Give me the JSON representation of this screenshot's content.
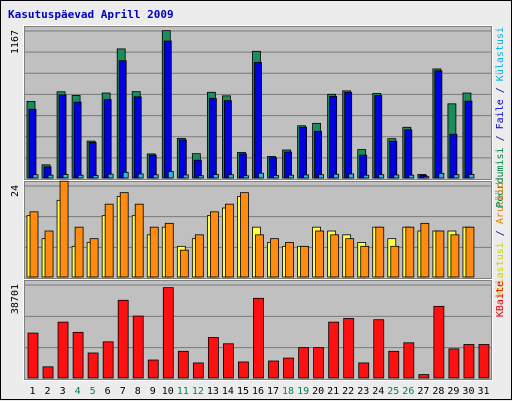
{
  "chart_data": {
    "type": "bar",
    "title": "Kasutuspäevad Aprill 2009",
    "categories": [
      "1",
      "2",
      "3",
      "4",
      "5",
      "6",
      "7",
      "8",
      "9",
      "10",
      "11",
      "12",
      "13",
      "14",
      "15",
      "16",
      "17",
      "18",
      "19",
      "20",
      "21",
      "22",
      "23",
      "24",
      "25",
      "26",
      "27",
      "28",
      "29",
      "30",
      "31"
    ],
    "weekend_days": [
      "4",
      "5",
      "11",
      "12",
      "18",
      "19",
      "25",
      "26"
    ],
    "panels": [
      {
        "id": "traffic",
        "ymax_label": "1167",
        "ylim": [
          0,
          1167
        ],
        "side_label_parts": [
          {
            "text": "Pöördumisi",
            "color": "#008040"
          },
          {
            "text": " / ",
            "color": "#000080"
          },
          {
            "text": "Faile",
            "color": "#0000d0"
          },
          {
            "text": " / ",
            "color": "#000080"
          },
          {
            "text": "Külastusi",
            "color": "#00b0e0"
          }
        ],
        "series": [
          {
            "name": "Pöördumisi",
            "color": "#1c8c5c",
            "values": [
              604,
              104,
              680,
              651,
              291,
              670,
              1018,
              681,
              190,
              1162,
              312,
              192,
              676,
              648,
              202,
              999,
              170,
              221,
              412,
              431,
              660,
              687,
              224,
              667,
              310,
              400,
              28,
              860,
              585,
              670,
              0
            ]
          },
          {
            "name": "Faile",
            "color": "#0000e0",
            "values": [
              542,
              88,
              655,
              598,
              280,
              618,
              925,
              640,
              180,
              1080,
              300,
              140,
              628,
              610,
              190,
              912,
              160,
              205,
              400,
              368,
              643,
              675,
              180,
              650,
              290,
              380,
              20,
              845,
              345,
              606,
              0
            ]
          },
          {
            "name": "Külastusi",
            "color": "#28b8e0",
            "values": [
              26,
              22,
              28,
              22,
              20,
              30,
              45,
              32,
              25,
              52,
              24,
              18,
              28,
              26,
              18,
              38,
              20,
              22,
              24,
              26,
              30,
              32,
              22,
              26,
              24,
              22,
              10,
              36,
              26,
              28,
              0
            ]
          }
        ]
      },
      {
        "id": "visits",
        "ymax_label": "24",
        "ylim": [
          0,
          24
        ],
        "side_label_parts": [
          {
            "text": "Külastusi",
            "color": "#d0d000"
          },
          {
            "text": " / ",
            "color": "#000080"
          },
          {
            "text": "Aruteid",
            "color": "#e08000"
          }
        ],
        "series": [
          {
            "name": "Külastusi",
            "color": "#ffff40",
            "values": [
              16,
              10,
              20,
              8,
              9,
              16,
              21,
              16,
              11,
              13,
              8,
              10,
              16,
              18,
              21,
              13,
              9,
              8,
              8,
              13,
              12,
              11,
              9,
              13,
              10,
              13,
              12,
              12,
              12,
              13,
              0
            ]
          },
          {
            "name": "Aruteid",
            "color": "#ff8c10",
            "values": [
              17,
              12,
              25,
              13,
              10,
              19,
              22,
              19,
              13,
              14,
              7,
              11,
              17,
              19,
              22,
              11,
              10,
              9,
              8,
              12,
              11,
              10,
              8,
              13,
              8,
              13,
              14,
              12,
              11,
              13,
              0
            ]
          }
        ]
      },
      {
        "id": "kbytes",
        "ymax_label": "38701",
        "ylim": [
          0,
          38701
        ],
        "side_label_parts": [
          {
            "text": "KBaite",
            "color": "#e00000"
          }
        ],
        "series": [
          {
            "name": "KBaite",
            "color": "#ff1010",
            "values": [
              18500,
              4600,
              23000,
              18800,
              10300,
              14900,
              32000,
              25500,
              7400,
              37200,
              11000,
              6200,
              16700,
              14100,
              6600,
              32800,
              7000,
              8200,
              12500,
              12500,
              23000,
              24500,
              6200,
              24000,
              11000,
              14500,
              1400,
              29500,
              12000,
              13800,
              13800
            ]
          }
        ]
      }
    ]
  },
  "colors": {
    "title": "#0000c0",
    "weekday": "#000000",
    "weekend": "#00805a",
    "plot_bg": "#c0c0c0",
    "grid": "#7a7a7a",
    "frame_bg": "#ececec"
  }
}
